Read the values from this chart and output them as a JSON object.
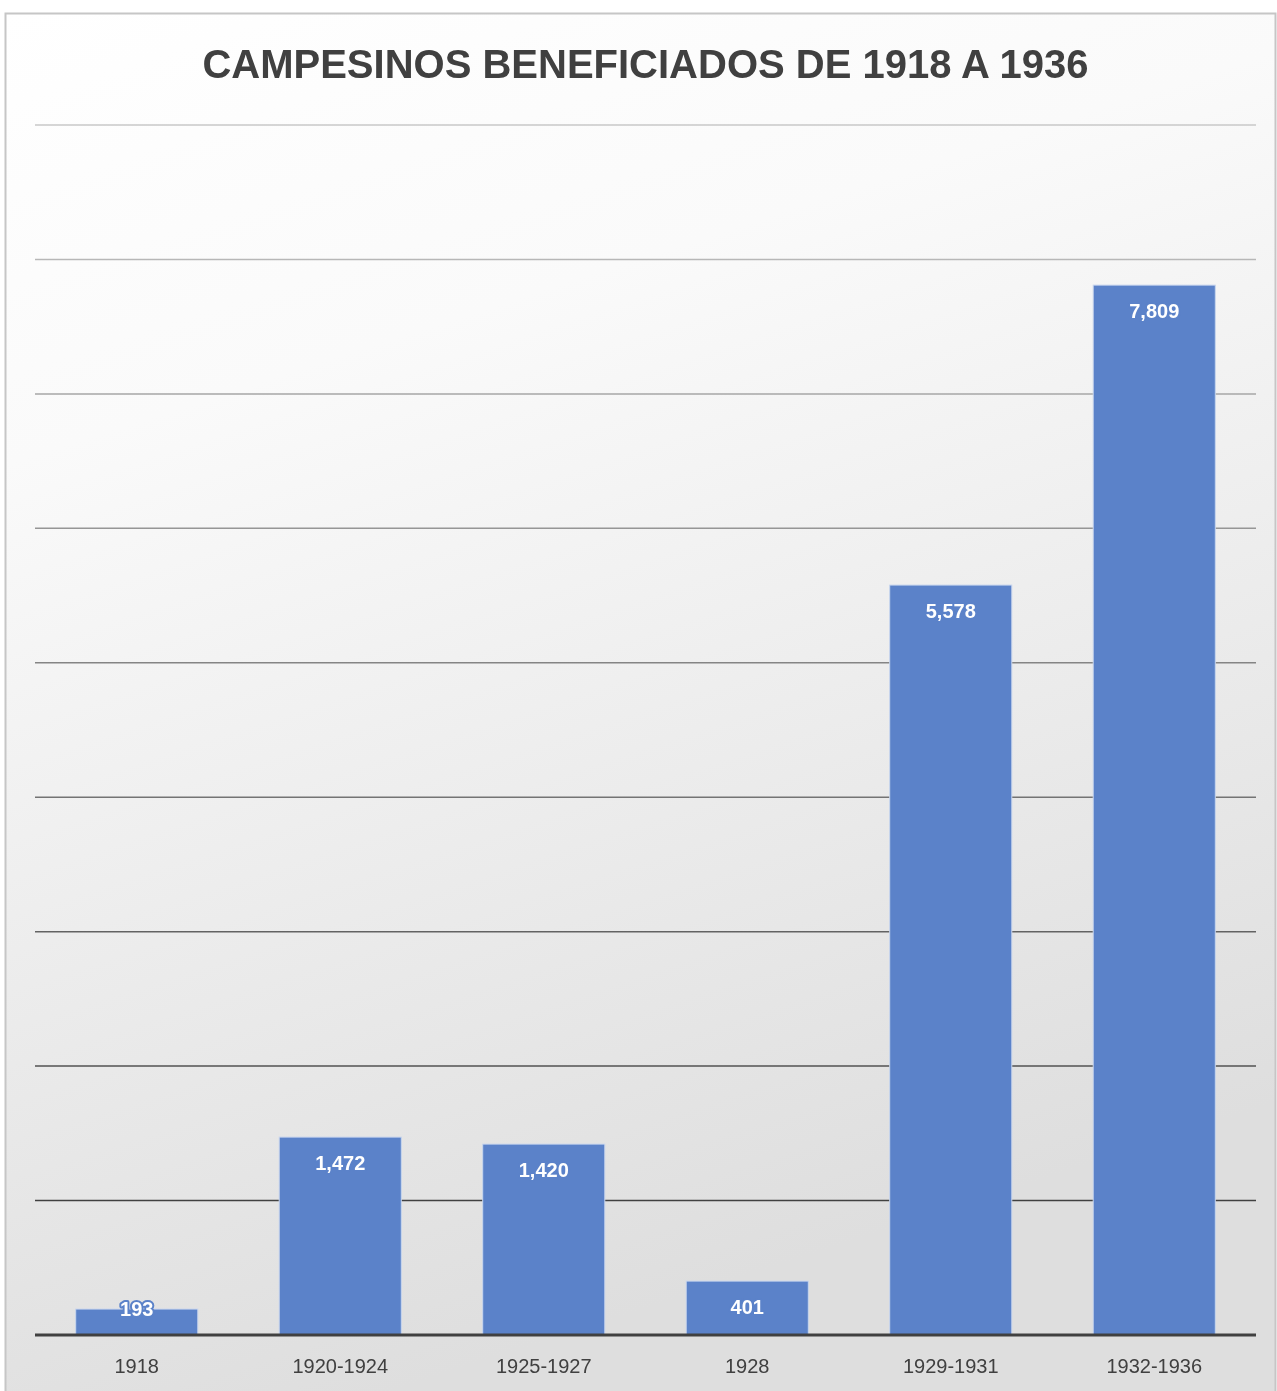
{
  "chart_data": {
    "type": "bar",
    "title": "CAMPESINOS BENEFICIADOS DE 1918 A 1936",
    "categories": [
      "1918",
      "1920-1924",
      "1925-1927",
      "1928",
      "1929-1931",
      "1932-1936"
    ],
    "values": [
      193,
      1472,
      1420,
      401,
      5578,
      7809
    ],
    "value_labels": [
      "193",
      "1,472",
      "1,420",
      "401",
      "5,578",
      "7,809"
    ],
    "color": "#5b82c9",
    "ylim": [
      0,
      9000
    ],
    "yticks": [
      {
        "value": 0,
        "label": null
      },
      {
        "value": 1000,
        "label": null
      },
      {
        "value": 2000,
        "label": null
      },
      {
        "value": 3000,
        "label": null
      },
      {
        "value": 4000,
        "label": null
      },
      {
        "value": 5000,
        "label": null
      },
      {
        "value": 6000,
        "label": null
      },
      {
        "value": 7000,
        "label": null
      },
      {
        "value": 8000,
        "label": null
      },
      {
        "value": 9000,
        "label": null
      }
    ],
    "tick_labels": "x",
    "grid": "y"
  }
}
